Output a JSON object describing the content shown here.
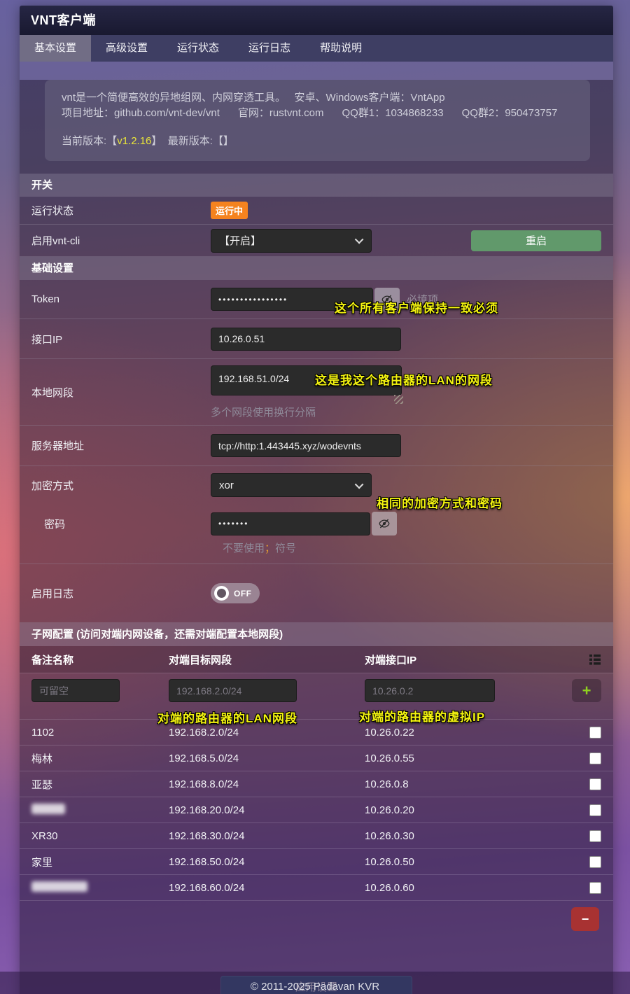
{
  "window": {
    "title": "VNT客户端",
    "footer": "© 2011-2025 Padavan KVR"
  },
  "tabs": [
    {
      "label": "基本设置",
      "active": true
    },
    {
      "label": "高级设置",
      "active": false
    },
    {
      "label": "运行状态",
      "active": false
    },
    {
      "label": "运行日志",
      "active": false
    },
    {
      "label": "帮助说明",
      "active": false
    }
  ],
  "info": {
    "line1a": "vnt是一个简便高效的异地组网、内网穿透工具。",
    "line1b": "安卓、Windows客户端：VntApp",
    "line2": [
      "项目地址：github.com/vnt-dev/vnt",
      "官网：rustvnt.com",
      "QQ群1：1034868233",
      "QQ群2：950473757"
    ],
    "version_label": "当前版本:",
    "version_open": "【",
    "version_value": "v1.2.16",
    "version_close": "】",
    "latest": "最新版本:【】"
  },
  "switch_section": {
    "title": "开关",
    "run_status_label": "运行状态",
    "run_status_badge": "运行中",
    "vnt_cli_label": "启用vnt-cli",
    "vnt_cli_value": "【开启】",
    "restart_label": "重启"
  },
  "basic_section": {
    "title": "基础设置",
    "token": {
      "label": "Token",
      "masked_value": "••••••••••••••••",
      "required_hint": "必填项",
      "annotation": "这个所有客户端保持一致必须"
    },
    "interface_ip": {
      "label": "接口IP",
      "value": "10.26.0.51"
    },
    "local_subnet": {
      "label": "本地网段",
      "value": "192.168.51.0/24",
      "hint": "多个网段使用换行分隔",
      "annotation": "这是我这个路由器的LAN的网段"
    },
    "server_addr": {
      "label": "服务器地址",
      "value": "tcp://http:1.443445.xyz/wodevnts"
    },
    "encryption": {
      "label": "加密方式",
      "value": "xor",
      "annotation": "相同的加密方式和密码"
    },
    "password": {
      "label": "密码",
      "masked_value": "•••••••",
      "hint_pre": "不要使用",
      "hint_mark": "；",
      "hint_post": "符号"
    },
    "log": {
      "label": "启用日志",
      "toggle_state": "OFF"
    }
  },
  "subnet": {
    "title": "子网配置 (访问对端内网设备，还需对端配置本地网段)",
    "columns": [
      "备注名称",
      "对端目标网段",
      "对端接口IP"
    ],
    "placeholders": {
      "name": "可留空",
      "segment": "192.168.2.0/24",
      "ip": "10.26.0.2"
    },
    "annotations": {
      "segment": "对端的路由器的LAN网段",
      "ip": "对端的路由器的虚拟IP"
    },
    "add_label": "+",
    "remove_label": "−",
    "rows": [
      {
        "name": "1102",
        "segment": "192.168.2.0/24",
        "ip": "10.26.0.22",
        "redacted": false
      },
      {
        "name": "梅林",
        "segment": "192.168.5.0/24",
        "ip": "10.26.0.55",
        "redacted": false
      },
      {
        "name": "亚瑟",
        "segment": "192.168.8.0/24",
        "ip": "10.26.0.8",
        "redacted": false
      },
      {
        "name": "",
        "segment": "192.168.20.0/24",
        "ip": "10.26.0.20",
        "redacted": true
      },
      {
        "name": "XR30",
        "segment": "192.168.30.0/24",
        "ip": "10.26.0.30",
        "redacted": false
      },
      {
        "name": "家里",
        "segment": "192.168.50.0/24",
        "ip": "10.26.0.50",
        "redacted": false
      },
      {
        "name": "",
        "segment": "192.168.60.0/24",
        "ip": "10.26.0.60",
        "redacted": true
      }
    ]
  },
  "apply_label": "应用设置",
  "colors": {
    "badge_running": "#f5831f",
    "restart_green": "#61996b",
    "apply_blue": "#3d5c88",
    "minus_red": "#a83232",
    "plus_green": "#8fd11f",
    "annotation_yellow": "#f4f410",
    "version_yellow": "#e8e43a"
  }
}
